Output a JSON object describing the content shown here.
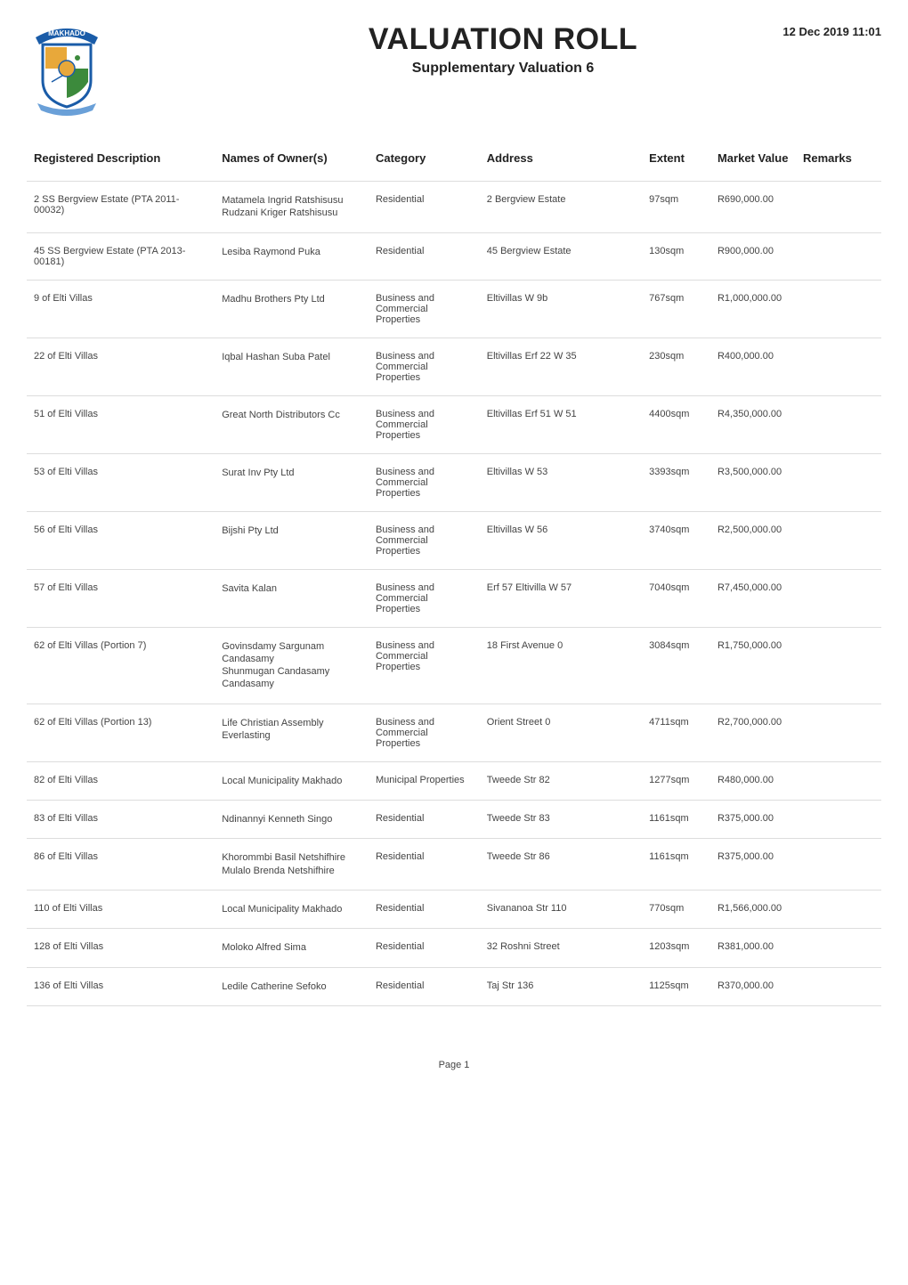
{
  "header": {
    "main_title": "VALUATION ROLL",
    "subtitle": "Supplementary Valuation 6",
    "timestamp": "12 Dec 2019 11:01"
  },
  "logo": {
    "banner_text": "MAKHADO",
    "shield_colors": {
      "outer": "#1a5ca8",
      "banner": "#1a5ca8",
      "banner_text": "#ffffff",
      "quad_top_left": "#e8a83a",
      "quad_top_right": "#ffffff",
      "quad_bottom_left": "#ffffff",
      "quad_bottom_right": "#3c8a3c",
      "center_ring": "#e8a83a",
      "ribbon": "#6aa0d8"
    }
  },
  "table": {
    "columns": [
      "Registered Description",
      "Names of Owner(s)",
      "Category",
      "Address",
      "Extent",
      "Market Value",
      "Remarks"
    ],
    "rows": [
      {
        "desc": "2 SS Bergview Estate (PTA 2011-00032)",
        "owners": [
          "Matamela Ingrid Ratshisusu",
          "Rudzani Kriger Ratshisusu"
        ],
        "category": "Residential",
        "address": "2 Bergview Estate",
        "extent": "97sqm",
        "value": "R690,000.00",
        "remarks": ""
      },
      {
        "desc": "45 SS Bergview Estate (PTA 2013-00181)",
        "owners": [
          "Lesiba Raymond Puka"
        ],
        "category": "Residential",
        "address": "45 Bergview Estate",
        "extent": "130sqm",
        "value": "R900,000.00",
        "remarks": ""
      },
      {
        "desc": "9 of Elti Villas",
        "owners": [
          "Madhu Brothers Pty Ltd"
        ],
        "category": "Business and Commercial Properties",
        "address": "Eltivillas W 9b",
        "extent": "767sqm",
        "value": "R1,000,000.00",
        "remarks": ""
      },
      {
        "desc": "22 of Elti Villas",
        "owners": [
          "Iqbal Hashan Suba Patel"
        ],
        "category": "Business and Commercial Properties",
        "address": "Eltivillas Erf 22 W 35",
        "extent": "230sqm",
        "value": "R400,000.00",
        "remarks": ""
      },
      {
        "desc": "51 of Elti Villas",
        "owners": [
          "Great North Distributors Cc"
        ],
        "category": "Business and Commercial Properties",
        "address": "Eltivillas Erf 51 W 51",
        "extent": "4400sqm",
        "value": "R4,350,000.00",
        "remarks": ""
      },
      {
        "desc": "53 of Elti Villas",
        "owners": [
          "Surat Inv Pty Ltd"
        ],
        "category": "Business and Commercial Properties",
        "address": "Eltivillas W 53",
        "extent": "3393sqm",
        "value": "R3,500,000.00",
        "remarks": ""
      },
      {
        "desc": "56 of Elti Villas",
        "owners": [
          "Bijshi Pty Ltd"
        ],
        "category": "Business and Commercial Properties",
        "address": "Eltivillas W 56",
        "extent": "3740sqm",
        "value": "R2,500,000.00",
        "remarks": ""
      },
      {
        "desc": "57 of Elti Villas",
        "owners": [
          "Savita Kalan"
        ],
        "category": "Business and Commercial Properties",
        "address": "Erf 57 Eltivilla W 57",
        "extent": "7040sqm",
        "value": "R7,450,000.00",
        "remarks": ""
      },
      {
        "desc": "62 of Elti Villas (Portion 7)",
        "owners": [
          "Govinsdamy Sargunam",
          "Candasamy",
          "Shunmugan Candasamy",
          "Candasamy"
        ],
        "category": "Business and Commercial Properties",
        "address": "18 First Avenue 0",
        "extent": "3084sqm",
        "value": "R1,750,000.00",
        "remarks": ""
      },
      {
        "desc": "62 of Elti Villas (Portion 13)",
        "owners": [
          "Life Christian Assembly Everlasting"
        ],
        "category": "Business and Commercial Properties",
        "address": "Orient Street 0",
        "extent": "4711sqm",
        "value": "R2,700,000.00",
        "remarks": ""
      },
      {
        "desc": "82 of Elti Villas",
        "owners": [
          "Local Municipality Makhado"
        ],
        "category": "Municipal Properties",
        "address": "Tweede Str 82",
        "extent": "1277sqm",
        "value": "R480,000.00",
        "remarks": ""
      },
      {
        "desc": "83 of Elti Villas",
        "owners": [
          "Ndinannyi Kenneth Singo"
        ],
        "category": "Residential",
        "address": "Tweede Str 83",
        "extent": "1161sqm",
        "value": "R375,000.00",
        "remarks": ""
      },
      {
        "desc": "86 of Elti Villas",
        "owners": [
          "Khorommbi Basil Netshifhire",
          "Mulalo Brenda Netshifhire"
        ],
        "category": "Residential",
        "address": "Tweede Str 86",
        "extent": "1161sqm",
        "value": "R375,000.00",
        "remarks": ""
      },
      {
        "desc": "110 of Elti Villas",
        "owners": [
          "Local Municipality Makhado"
        ],
        "category": "Residential",
        "address": "Sivananoa Str 110",
        "extent": "770sqm",
        "value": "R1,566,000.00",
        "remarks": ""
      },
      {
        "desc": "128 of Elti Villas",
        "owners": [
          "Moloko Alfred Sima"
        ],
        "category": "Residential",
        "address": "32 Roshni Street",
        "extent": "1203sqm",
        "value": "R381,000.00",
        "remarks": ""
      },
      {
        "desc": "136 of Elti Villas",
        "owners": [
          "Ledile Catherine Sefoko"
        ],
        "category": "Residential",
        "address": "Taj Str 136",
        "extent": "1125sqm",
        "value": "R370,000.00",
        "remarks": ""
      }
    ]
  },
  "footer": {
    "page_label": "Page 1"
  }
}
